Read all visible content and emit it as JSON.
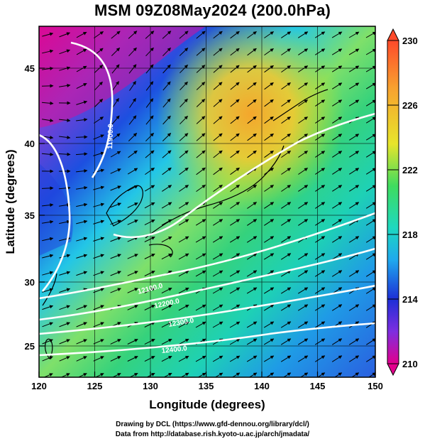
{
  "title": "MSM 09Z08May2024 (200.0hPa)",
  "axes": {
    "xlabel": "Longitude (degrees)",
    "ylabel": "Latitude  (degrees)",
    "x_ticks": [
      "120",
      "125",
      "130",
      "135",
      "140",
      "145",
      "150"
    ],
    "y_ticks": [
      "25",
      "30",
      "35",
      "40",
      "45"
    ],
    "xlim": [
      120,
      150
    ],
    "ylim": [
      22.4,
      47.6
    ]
  },
  "colorbar": {
    "labels": [
      "230",
      "226",
      "222",
      "218",
      "214",
      "210"
    ],
    "range": [
      210,
      230
    ],
    "colors": [
      "#e3008d",
      "#8a2be2",
      "#1d2fd6",
      "#1ec8ef",
      "#23d67a",
      "#b7e51f",
      "#f2a92d",
      "#ff4500"
    ]
  },
  "contours": {
    "labels": [
      "11900.0",
      "12100.0",
      "12200.0",
      "12300.0",
      "12400.0"
    ]
  },
  "credits": {
    "line1": "Drawing by DCL (https://www.gfd-dennou.org/library/dcl/)",
    "line2": "Data from http://database.rish.kyoto-u.ac.jp/arch/jmadata/"
  }
}
